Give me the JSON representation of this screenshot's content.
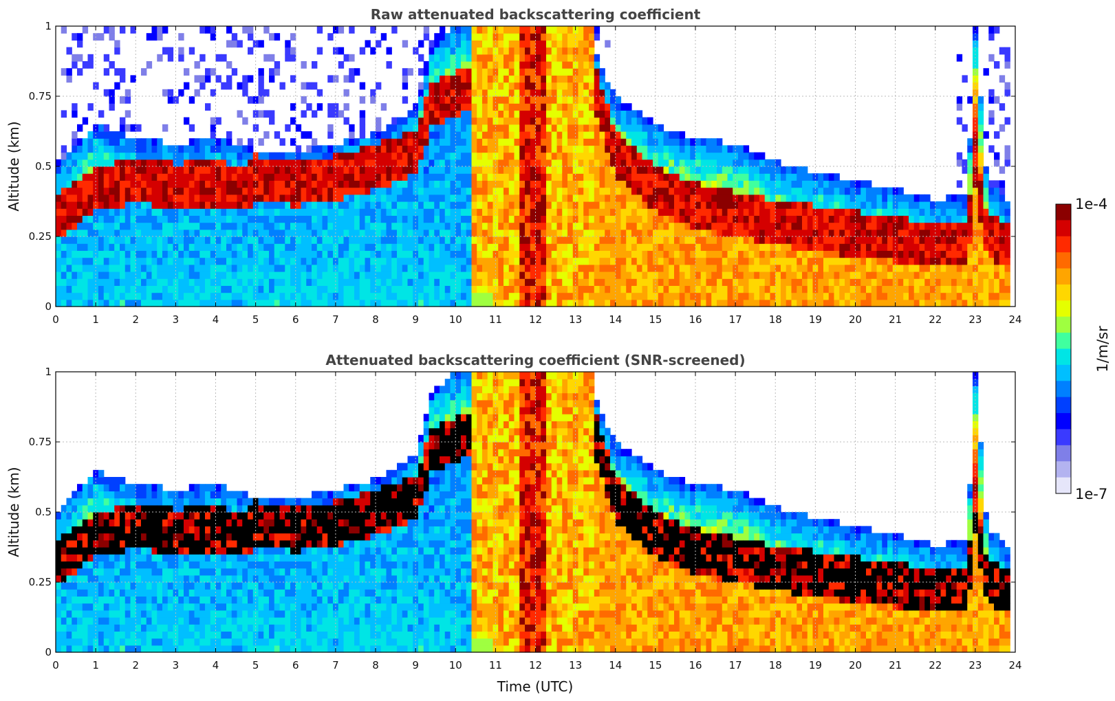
{
  "colorbar": {
    "max_label": "1e-4",
    "min_label": "1e-7",
    "unit_label": "1/m/sr",
    "colors": [
      "#e6e6fa",
      "#b3b3f0",
      "#7f7fe8",
      "#3a3aff",
      "#0000ff",
      "#0040ff",
      "#0080ff",
      "#00bfff",
      "#00e5e5",
      "#40ff9f",
      "#9fff40",
      "#e5ff00",
      "#ffd700",
      "#ffa500",
      "#ff6a00",
      "#ff2a00",
      "#d40000",
      "#8b0000"
    ]
  },
  "xaxis_label": "Time (UTC)",
  "chart_data": [
    {
      "type": "heatmap",
      "title": "Raw attenuated backscattering coefficient",
      "xlabel": "",
      "ylabel": "Altitude (km)",
      "xlim": [
        0,
        24
      ],
      "ylim": [
        0,
        1
      ],
      "xticks": [
        "0",
        "1",
        "2",
        "3",
        "4",
        "5",
        "6",
        "7",
        "8",
        "9",
        "10",
        "11",
        "12",
        "13",
        "14",
        "15",
        "16",
        "17",
        "18",
        "19",
        "20",
        "21",
        "22",
        "23",
        "24"
      ],
      "yticks": [
        "0",
        "0.25",
        "0.5",
        "0.75",
        "1"
      ],
      "grid": true,
      "colorscale": "log",
      "clim": [
        1e-07,
        0.0001
      ],
      "layer_profile": {
        "time_utc": [
          0,
          1,
          2,
          3,
          4,
          4.8,
          5,
          6,
          7,
          8,
          9,
          9.4,
          10,
          10.5,
          11,
          12,
          13,
          13.5,
          14,
          15,
          16,
          17,
          18,
          19,
          20,
          21,
          22,
          22.8,
          23,
          23.3,
          23.8
        ],
        "layer_center_km": [
          0.32,
          0.42,
          0.45,
          0.43,
          0.44,
          0.42,
          0.46,
          0.44,
          0.46,
          0.5,
          0.55,
          0.72,
          0.76,
          0.78,
          0.85,
          0.9,
          0.9,
          0.78,
          0.55,
          0.42,
          0.36,
          0.33,
          0.3,
          0.28,
          0.26,
          0.24,
          0.22,
          0.22,
          0.5,
          0.25,
          0.22
        ],
        "layer_top_km": [
          0.5,
          0.65,
          0.6,
          0.58,
          0.6,
          0.56,
          0.55,
          0.55,
          0.58,
          0.62,
          0.7,
          0.92,
          1.0,
          1.0,
          1.0,
          1.0,
          1.0,
          0.9,
          0.75,
          0.65,
          0.6,
          0.58,
          0.52,
          0.48,
          0.45,
          0.42,
          0.38,
          0.4,
          1.0,
          0.45,
          0.38
        ]
      }
    },
    {
      "type": "heatmap",
      "title": "Attenuated backscattering coefficient (SNR-screened)",
      "xlabel": "Time (UTC)",
      "ylabel": "Altitude (km)",
      "xlim": [
        0,
        24
      ],
      "ylim": [
        0,
        1
      ],
      "xticks": [
        "0",
        "1",
        "2",
        "3",
        "4",
        "5",
        "6",
        "7",
        "8",
        "9",
        "10",
        "11",
        "12",
        "13",
        "14",
        "15",
        "16",
        "17",
        "18",
        "19",
        "20",
        "21",
        "22",
        "23",
        "24"
      ],
      "yticks": [
        "0",
        "0.25",
        "0.5",
        "0.75",
        "1"
      ],
      "grid": true,
      "colorscale": "log",
      "clim": [
        1e-07,
        0.0001
      ],
      "layer_profile": {
        "time_utc": [
          0,
          1,
          2,
          3,
          4,
          4.8,
          5,
          6,
          7,
          8,
          9,
          9.4,
          10,
          10.5,
          11,
          12,
          13,
          13.5,
          14,
          15,
          16,
          17,
          18,
          19,
          20,
          21,
          22,
          22.8,
          23,
          23.3,
          23.8
        ],
        "layer_center_km": [
          0.32,
          0.42,
          0.45,
          0.43,
          0.44,
          0.42,
          0.46,
          0.44,
          0.46,
          0.5,
          0.55,
          0.72,
          0.76,
          0.78,
          0.85,
          0.9,
          0.9,
          0.78,
          0.55,
          0.42,
          0.36,
          0.33,
          0.3,
          0.28,
          0.26,
          0.24,
          0.22,
          0.22,
          0.5,
          0.25,
          0.22
        ],
        "layer_top_km": [
          0.5,
          0.65,
          0.6,
          0.58,
          0.6,
          0.56,
          0.55,
          0.55,
          0.58,
          0.62,
          0.7,
          0.92,
          1.0,
          1.0,
          1.0,
          1.0,
          1.0,
          0.9,
          0.75,
          0.65,
          0.6,
          0.58,
          0.52,
          0.48,
          0.45,
          0.42,
          0.38,
          0.4,
          1.0,
          0.45,
          0.38
        ]
      }
    }
  ]
}
